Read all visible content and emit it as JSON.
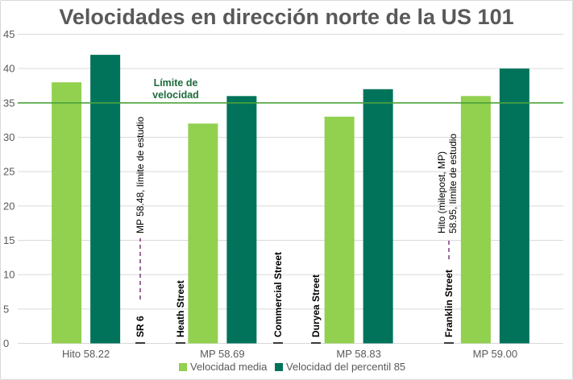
{
  "chart_data": {
    "type": "bar",
    "title": "Velocidades en dirección norte de la US 101",
    "categories": [
      "Hito 58.22",
      "MP 58.69",
      "MP 58.83",
      "MP 59.00"
    ],
    "series": [
      {
        "name": "Velocidad media",
        "values": [
          38,
          32,
          33,
          36
        ]
      },
      {
        "name": "Velocidad del percentil 85",
        "values": [
          42,
          36,
          37,
          40
        ]
      }
    ],
    "ylim": [
      0,
      45
    ],
    "yticks": [
      0,
      5,
      10,
      15,
      20,
      25,
      30,
      35,
      40,
      45
    ],
    "grid": true,
    "legend": "bottom",
    "reference_line": {
      "value": 35,
      "label_line1": "Límite de",
      "label_line2": "velocidad"
    },
    "streets": [
      "SR 6",
      "Heath Street",
      "Commercial Street",
      "Duryea Street",
      "Franklin Street"
    ],
    "study_limits": [
      {
        "lines": [
          "MP 58.48, límite de estudio"
        ]
      },
      {
        "lines": [
          "Hito (milepost, MP)",
          "58.95, límite de estudio"
        ]
      }
    ],
    "colors": {
      "series1": "#92d050",
      "series2": "#00735a",
      "reference": "#4ca33c",
      "annotation_dash": "#7a3a7a",
      "grid": "#d9d9d9"
    }
  }
}
